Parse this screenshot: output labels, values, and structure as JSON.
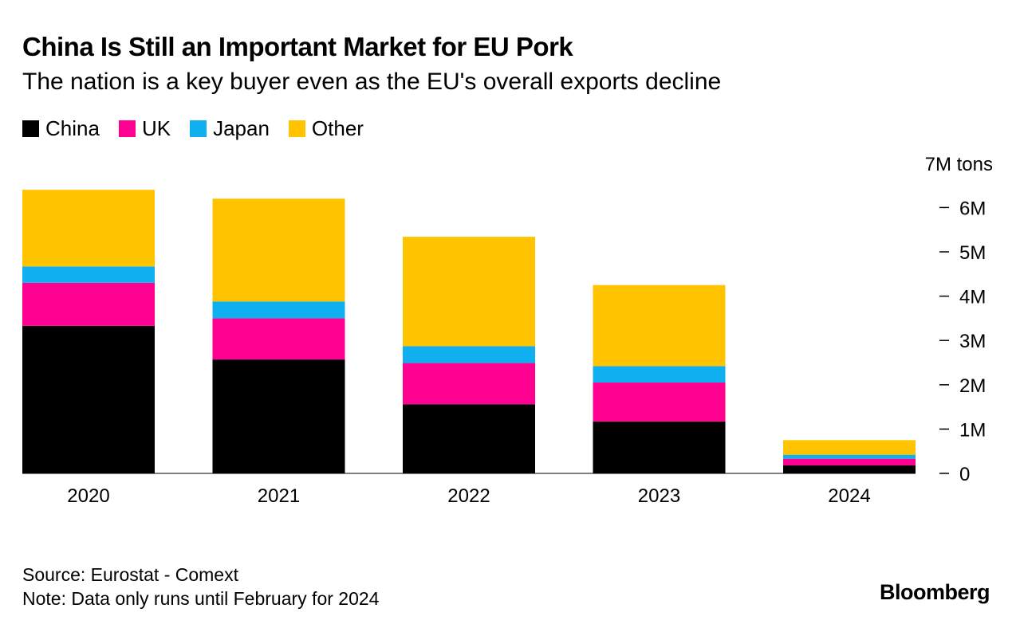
{
  "chart_data": {
    "type": "bar",
    "stacked": true,
    "title": "China Is Still an Important Market for EU Pork",
    "subtitle": "The nation is a key buyer even as the EU's overall exports decline",
    "categories": [
      "2020",
      "2021",
      "2022",
      "2023",
      "2024"
    ],
    "series": [
      {
        "name": "China",
        "color": "#000000",
        "values": [
          3.33,
          2.57,
          1.56,
          1.17,
          0.18
        ]
      },
      {
        "name": "UK",
        "color": "#ff0090",
        "values": [
          0.97,
          0.93,
          0.93,
          0.88,
          0.15
        ]
      },
      {
        "name": "Japan",
        "color": "#10b0f0",
        "values": [
          0.37,
          0.38,
          0.38,
          0.37,
          0.09
        ]
      },
      {
        "name": "Other",
        "color": "#ffc300",
        "values": [
          1.73,
          2.32,
          2.47,
          1.83,
          0.33
        ]
      }
    ],
    "ylim": [
      0,
      7
    ],
    "yticks": [
      {
        "value": 0,
        "label": "0"
      },
      {
        "value": 1,
        "label": "1M"
      },
      {
        "value": 2,
        "label": "2M"
      },
      {
        "value": 3,
        "label": "3M"
      },
      {
        "value": 4,
        "label": "4M"
      },
      {
        "value": 5,
        "label": "5M"
      },
      {
        "value": 6,
        "label": "6M"
      },
      {
        "value": 7,
        "label": "7M tons"
      }
    ],
    "ylabel": "tons",
    "axis_side": "right",
    "legend_position": "top-left"
  },
  "footer": {
    "source": "Source: Eurostat - Comext",
    "note": "Note: Data only runs until February for 2024",
    "brand": "Bloomberg"
  }
}
